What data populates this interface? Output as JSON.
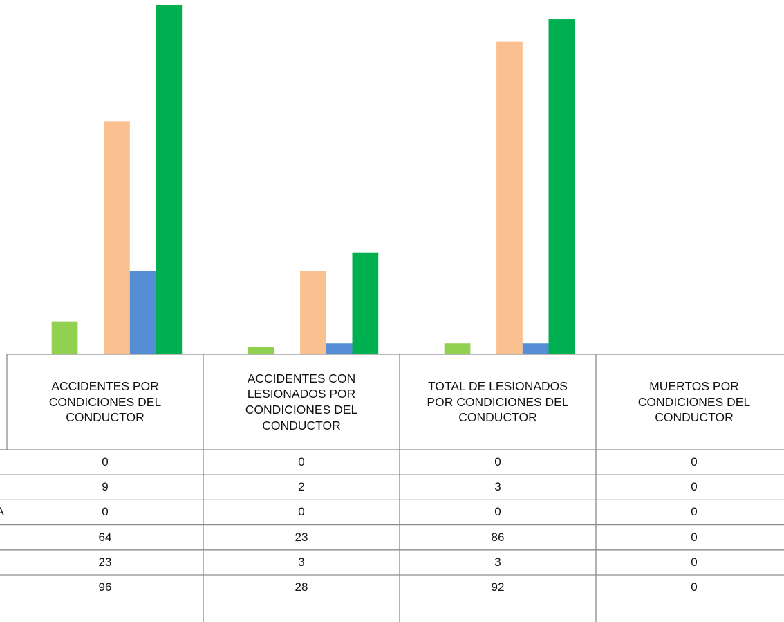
{
  "chart_data": {
    "type": "bar",
    "categories": [
      "ACCIDENTES POR CONDICIONES DEL CONDUCTOR",
      "ACCIDENTES CON LESIONADOS POR CONDICIONES DEL CONDUCTOR",
      "TOTAL DE LESIONADOS POR CONDICIONES DEL CONDUCTOR",
      "MUERTOS  POR CONDICIONES DEL CONDUCTOR"
    ],
    "ylim": [
      0,
      96
    ],
    "series": [
      {
        "name": null,
        "color": "#4f81bd",
        "values": [
          0,
          0,
          0,
          0
        ]
      },
      {
        "name": null,
        "color": "#92d050",
        "values": [
          9,
          2,
          3,
          0
        ]
      },
      {
        "name": "A",
        "color": "#c0504d",
        "values": [
          0,
          0,
          0,
          0
        ]
      },
      {
        "name": null,
        "color": "#fac090",
        "values": [
          64,
          23,
          86,
          0
        ]
      },
      {
        "name": null,
        "color": "#558ed5",
        "values": [
          23,
          3,
          3,
          0
        ]
      },
      {
        "name": null,
        "color": "#00b050",
        "values": [
          96,
          28,
          92,
          0
        ]
      }
    ]
  }
}
